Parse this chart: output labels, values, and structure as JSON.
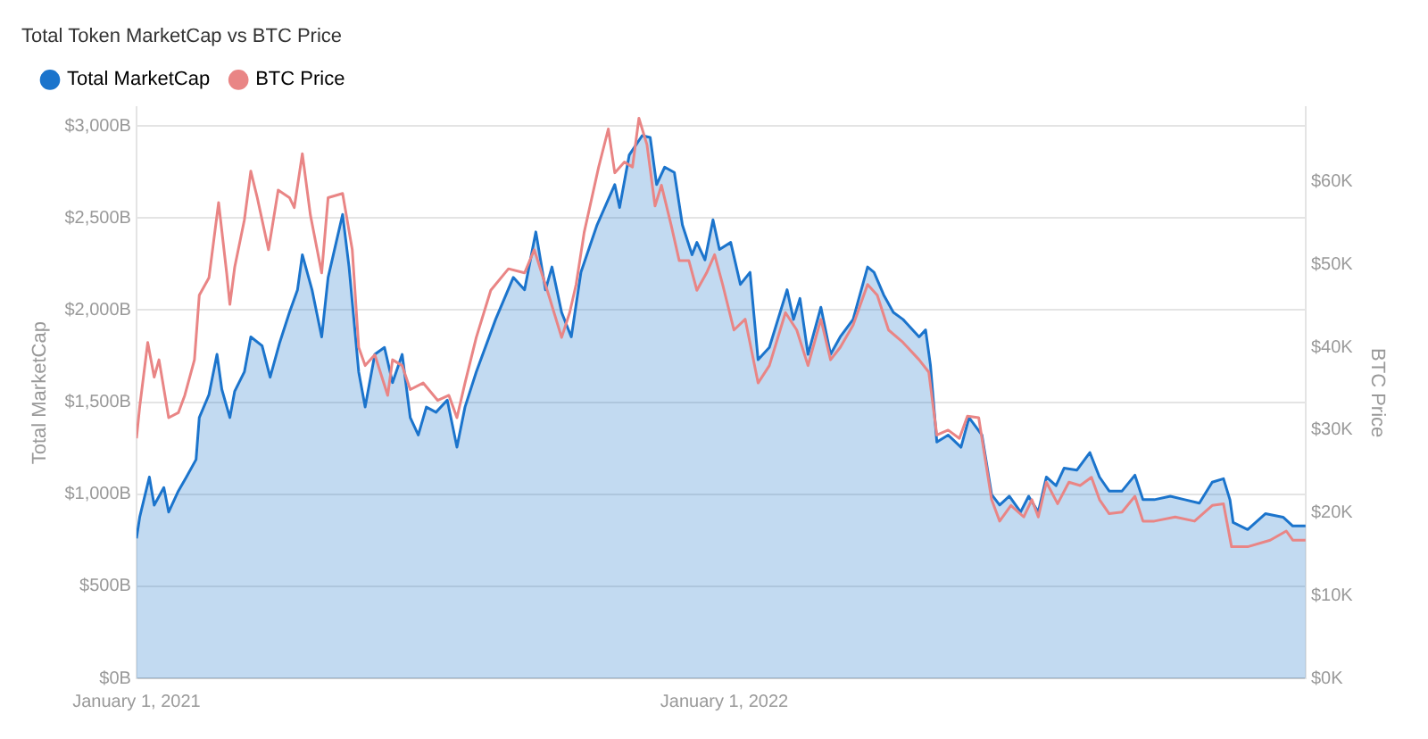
{
  "chart_data": {
    "type": "line",
    "title": "Total Token MarketCap vs BTC Price",
    "ylabel": "Total MarketCap",
    "y2label": "BTC Price",
    "xlim": [
      "2021-01-01",
      "2022-12-28"
    ],
    "xticks": [
      {
        "value": "2021-01-01",
        "label": "January 1, 2021"
      },
      {
        "value": "2022-01-01",
        "label": "January 1, 2022"
      }
    ],
    "ylim": [
      0,
      3100
    ],
    "yticks": [
      {
        "value": 0,
        "label": "$0B"
      },
      {
        "value": 500,
        "label": "$500B"
      },
      {
        "value": 1000,
        "label": "$1,000B"
      },
      {
        "value": 1500,
        "label": "$1,500B"
      },
      {
        "value": 2000,
        "label": "$2,000B"
      },
      {
        "value": 2500,
        "label": "$2,500B"
      },
      {
        "value": 3000,
        "label": "$3,000B"
      }
    ],
    "y2lim": [
      0,
      69
    ],
    "y2ticks": [
      {
        "value": 0,
        "label": "$0K"
      },
      {
        "value": 10,
        "label": "$10K"
      },
      {
        "value": 20,
        "label": "$20K"
      },
      {
        "value": 30,
        "label": "$30K"
      },
      {
        "value": 40,
        "label": "$40K"
      },
      {
        "value": 50,
        "label": "$50K"
      },
      {
        "value": 60,
        "label": "$60K"
      }
    ],
    "grid": "y",
    "legend": "top left",
    "marker": "none",
    "line_style": "solid",
    "series": [
      {
        "name": "Total MarketCap",
        "type": "area",
        "color": "#1b74cc",
        "x": [
          "2021-01-01",
          "2021-01-03",
          "2021-01-09",
          "2021-01-12",
          "2021-01-18",
          "2021-01-21",
          "2021-01-27",
          "2021-02-01",
          "2021-02-07",
          "2021-02-09",
          "2021-02-15",
          "2021-02-20",
          "2021-02-23",
          "2021-02-28",
          "2021-03-03",
          "2021-03-09",
          "2021-03-13",
          "2021-03-20",
          "2021-03-25",
          "2021-03-31",
          "2021-04-06",
          "2021-04-11",
          "2021-04-14",
          "2021-04-20",
          "2021-04-26",
          "2021-04-30",
          "2021-05-05",
          "2021-05-09",
          "2021-05-13",
          "2021-05-19",
          "2021-05-23",
          "2021-05-29",
          "2021-06-04",
          "2021-06-09",
          "2021-06-15",
          "2021-06-20",
          "2021-06-25",
          "2021-06-30",
          "2021-07-06",
          "2021-07-13",
          "2021-07-19",
          "2021-07-24",
          "2021-07-31",
          "2021-08-12",
          "2021-08-23",
          "2021-08-30",
          "2021-09-06",
          "2021-09-12",
          "2021-09-16",
          "2021-09-22",
          "2021-09-28",
          "2021-10-04",
          "2021-10-14",
          "2021-10-25",
          "2021-10-28",
          "2021-11-03",
          "2021-11-11",
          "2021-11-16",
          "2021-11-20",
          "2021-11-25",
          "2021-12-01",
          "2021-12-06",
          "2021-12-12",
          "2021-12-15",
          "2021-12-20",
          "2021-12-25",
          "2021-12-29",
          "2022-01-05",
          "2022-01-11",
          "2022-01-17",
          "2022-01-22",
          "2022-01-29",
          "2022-02-09",
          "2022-02-13",
          "2022-02-17",
          "2022-02-22",
          "2022-03-02",
          "2022-03-08",
          "2022-03-14",
          "2022-03-22",
          "2022-03-31",
          "2022-04-04",
          "2022-04-10",
          "2022-04-16",
          "2022-04-22",
          "2022-05-02",
          "2022-05-06",
          "2022-05-09",
          "2022-05-13",
          "2022-05-20",
          "2022-05-28",
          "2022-06-02",
          "2022-06-10",
          "2022-06-16",
          "2022-06-21",
          "2022-06-27",
          "2022-07-04",
          "2022-07-09",
          "2022-07-15",
          "2022-07-20",
          "2022-07-26",
          "2022-07-31",
          "2022-08-08",
          "2022-08-16",
          "2022-08-22",
          "2022-08-28",
          "2022-09-05",
          "2022-09-13",
          "2022-09-18",
          "2022-09-25",
          "2022-10-05",
          "2022-10-14",
          "2022-10-23",
          "2022-10-31",
          "2022-11-07",
          "2022-11-11",
          "2022-11-13",
          "2022-11-22",
          "2022-12-03",
          "2022-12-14",
          "2022-12-20",
          "2022-12-28"
        ],
        "values": [
          760,
          875,
          1093,
          940,
          1036,
          903,
          1017,
          1093,
          1188,
          1416,
          1540,
          1759,
          1569,
          1416,
          1559,
          1664,
          1854,
          1806,
          1635,
          1825,
          1987,
          2110,
          2300,
          2110,
          1854,
          2177,
          2367,
          2519,
          2234,
          1664,
          1473,
          1759,
          1797,
          1606,
          1759,
          1416,
          1321,
          1473,
          1445,
          1511,
          1255,
          1473,
          1664,
          1949,
          2177,
          2110,
          2424,
          2110,
          2234,
          1987,
          1854,
          2205,
          2462,
          2681,
          2557,
          2842,
          2947,
          2937,
          2681,
          2776,
          2747,
          2462,
          2300,
          2367,
          2272,
          2490,
          2329,
          2367,
          2139,
          2205,
          1730,
          1797,
          2110,
          1949,
          2063,
          1759,
          2015,
          1759,
          1854,
          1949,
          2234,
          2205,
          2082,
          1987,
          1949,
          1854,
          1892,
          1702,
          1283,
          1321,
          1255,
          1416,
          1321,
          998,
          941,
          989,
          903,
          989,
          903,
          1093,
          1046,
          1141,
          1131,
          1226,
          1093,
          1017,
          1017,
          1103,
          970,
          970,
          989,
          970,
          951,
          1065,
          1084,
          970,
          846,
          808,
          894,
          875,
          827,
          827
        ]
      },
      {
        "name": "BTC Price",
        "type": "line",
        "axis": "y2",
        "color": "#e98585",
        "x": [
          "2021-01-01",
          "2021-01-03",
          "2021-01-08",
          "2021-01-12",
          "2021-01-15",
          "2021-01-21",
          "2021-01-27",
          "2021-01-31",
          "2021-02-06",
          "2021-02-09",
          "2021-02-15",
          "2021-02-21",
          "2021-02-26",
          "2021-02-28",
          "2021-03-03",
          "2021-03-09",
          "2021-03-13",
          "2021-03-17",
          "2021-03-24",
          "2021-03-30",
          "2021-04-06",
          "2021-04-09",
          "2021-04-14",
          "2021-04-19",
          "2021-04-26",
          "2021-04-30",
          "2021-05-09",
          "2021-05-15",
          "2021-05-19",
          "2021-05-23",
          "2021-05-29",
          "2021-06-06",
          "2021-06-09",
          "2021-06-15",
          "2021-06-20",
          "2021-06-28",
          "2021-07-07",
          "2021-07-14",
          "2021-07-19",
          "2021-07-24",
          "2021-07-31",
          "2021-08-09",
          "2021-08-20",
          "2021-08-30",
          "2021-09-05",
          "2021-09-14",
          "2021-09-22",
          "2021-09-27",
          "2021-10-01",
          "2021-10-06",
          "2021-10-15",
          "2021-10-21",
          "2021-10-25",
          "2021-10-31",
          "2021-11-05",
          "2021-11-09",
          "2021-11-14",
          "2021-11-19",
          "2021-11-23",
          "2021-11-29",
          "2021-12-04",
          "2021-12-10",
          "2021-12-15",
          "2021-12-21",
          "2021-12-26",
          "2021-12-31",
          "2022-01-07",
          "2022-01-14",
          "2022-01-22",
          "2022-01-29",
          "2022-02-08",
          "2022-02-15",
          "2022-02-22",
          "2022-03-02",
          "2022-03-08",
          "2022-03-14",
          "2022-03-22",
          "2022-03-31",
          "2022-04-06",
          "2022-04-13",
          "2022-04-22",
          "2022-05-02",
          "2022-05-08",
          "2022-05-13",
          "2022-05-20",
          "2022-05-27",
          "2022-06-01",
          "2022-06-08",
          "2022-06-16",
          "2022-06-21",
          "2022-06-28",
          "2022-07-06",
          "2022-07-11",
          "2022-07-15",
          "2022-07-20",
          "2022-07-27",
          "2022-08-03",
          "2022-08-10",
          "2022-08-17",
          "2022-08-22",
          "2022-08-28",
          "2022-09-05",
          "2022-09-13",
          "2022-09-18",
          "2022-09-25",
          "2022-10-08",
          "2022-10-20",
          "2022-10-31",
          "2022-11-07",
          "2022-11-12",
          "2022-11-22",
          "2022-12-06",
          "2022-12-16",
          "2022-12-20",
          "2022-12-28"
        ],
        "values": [
          29.0,
          32.8,
          40.6,
          36.4,
          38.5,
          31.5,
          32.1,
          34.2,
          38.5,
          46.3,
          48.4,
          57.5,
          49.0,
          45.2,
          49.7,
          55.4,
          61.3,
          58.1,
          51.8,
          59.0,
          58.1,
          56.9,
          63.4,
          56.0,
          49.0,
          58.1,
          58.6,
          51.8,
          40.0,
          37.8,
          39.1,
          34.2,
          38.5,
          37.8,
          34.9,
          35.7,
          33.6,
          34.2,
          31.5,
          35.7,
          41.2,
          46.9,
          49.5,
          49.0,
          51.8,
          46.3,
          41.2,
          44.2,
          47.6,
          53.9,
          61.8,
          66.4,
          61.1,
          62.4,
          61.8,
          67.7,
          64.5,
          57.1,
          59.6,
          54.8,
          50.5,
          50.5,
          46.9,
          49.0,
          51.2,
          47.6,
          42.1,
          43.4,
          35.7,
          37.8,
          44.2,
          42.1,
          37.8,
          43.4,
          38.5,
          40.0,
          42.7,
          47.6,
          46.3,
          42.1,
          40.6,
          38.5,
          37.0,
          29.4,
          30.0,
          29.0,
          31.7,
          31.5,
          21.6,
          19.0,
          20.9,
          19.5,
          21.6,
          19.5,
          23.7,
          21.1,
          23.7,
          23.3,
          24.3,
          21.6,
          19.9,
          20.1,
          22.0,
          19.0,
          19.0,
          19.5,
          19.0,
          20.9,
          21.1,
          15.9,
          15.9,
          16.7,
          17.8,
          16.7,
          16.7
        ]
      }
    ]
  }
}
